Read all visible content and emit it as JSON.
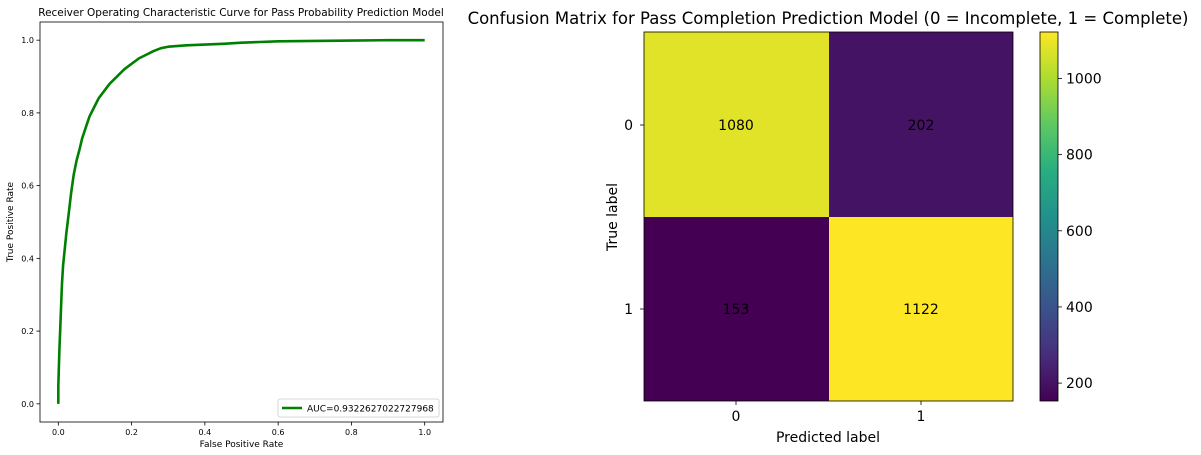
{
  "chart_data": [
    {
      "type": "line",
      "title": "Receiver Operating Characteristic Curve for Pass Probability Prediction Model",
      "xlabel": "False Positive Rate",
      "ylabel": "True Positive Rate",
      "xlim": [
        -0.05,
        1.05
      ],
      "ylim": [
        -0.05,
        1.05
      ],
      "xticks": [
        "0.0",
        "0.2",
        "0.4",
        "0.6",
        "0.8",
        "1.0"
      ],
      "yticks": [
        "0.0",
        "0.2",
        "0.4",
        "0.6",
        "0.8",
        "1.0"
      ],
      "grid": false,
      "legend_position": "lower-right",
      "series": [
        {
          "name": "AUC=0.9322627022727968",
          "color": "#008000",
          "x": [
            0.0,
            0.0,
            0.003,
            0.005,
            0.008,
            0.01,
            0.013,
            0.017,
            0.022,
            0.028,
            0.035,
            0.042,
            0.05,
            0.058,
            0.065,
            0.075,
            0.085,
            0.095,
            0.11,
            0.125,
            0.14,
            0.16,
            0.18,
            0.2,
            0.22,
            0.24,
            0.26,
            0.28,
            0.3,
            0.35,
            0.4,
            0.45,
            0.5,
            0.55,
            0.6,
            0.7,
            0.8,
            0.9,
            1.0
          ],
          "y": [
            0.0,
            0.05,
            0.15,
            0.2,
            0.28,
            0.33,
            0.38,
            0.42,
            0.47,
            0.52,
            0.58,
            0.63,
            0.67,
            0.7,
            0.73,
            0.76,
            0.79,
            0.81,
            0.84,
            0.86,
            0.88,
            0.9,
            0.92,
            0.935,
            0.95,
            0.96,
            0.97,
            0.978,
            0.982,
            0.986,
            0.988,
            0.99,
            0.993,
            0.995,
            0.997,
            0.998,
            0.999,
            1.0,
            1.0
          ]
        }
      ]
    },
    {
      "type": "heatmap",
      "title": "Confusion Matrix for Pass Completion Prediction Model (0 = Incomplete, 1 = Complete)",
      "xlabel": "Predicted label",
      "ylabel": "True label",
      "x_categories": [
        "0",
        "1"
      ],
      "y_categories": [
        "0",
        "1"
      ],
      "values": [
        [
          1080,
          202
        ],
        [
          153,
          1122
        ]
      ],
      "colormap": "viridis",
      "colorbar": {
        "range": [
          153,
          1122
        ],
        "ticks": [
          200,
          400,
          600,
          800,
          1000
        ],
        "tick_labels": [
          "200",
          "400",
          "600",
          "800",
          "1000"
        ]
      }
    }
  ]
}
